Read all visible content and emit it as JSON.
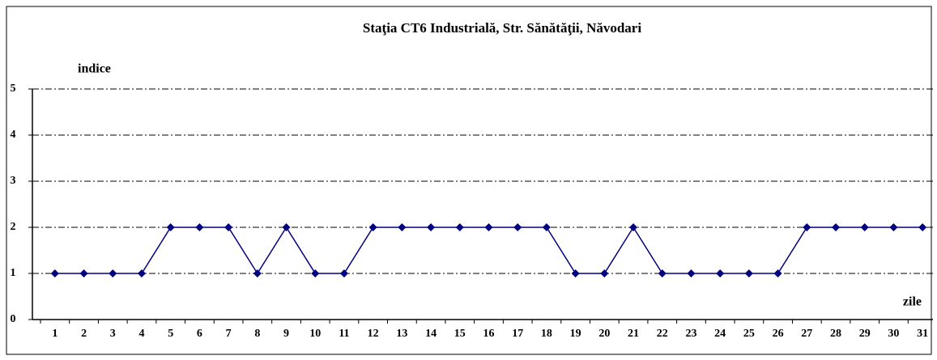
{
  "chart_data": {
    "type": "line",
    "title": "Staţia CT6 Industrială,  Str. Sănătăţii, Năvodari",
    "y_label": "indice",
    "x_label": "zile",
    "categories": [
      "1",
      "2",
      "3",
      "4",
      "5",
      "6",
      "7",
      "8",
      "9",
      "10",
      "11",
      "12",
      "13",
      "14",
      "15",
      "16",
      "17",
      "18",
      "19",
      "20",
      "21",
      "22",
      "23",
      "24",
      "25",
      "26",
      "27",
      "28",
      "29",
      "30",
      "31"
    ],
    "series": [
      {
        "name": "indice",
        "color": "#000080",
        "values": [
          1,
          1,
          1,
          1,
          2,
          2,
          2,
          1,
          2,
          1,
          1,
          2,
          2,
          2,
          2,
          2,
          2,
          2,
          1,
          1,
          2,
          1,
          1,
          1,
          1,
          1,
          2,
          2,
          2,
          2,
          2
        ]
      }
    ],
    "ylim": [
      0,
      5
    ],
    "yticks": [
      0,
      1,
      2,
      3,
      4,
      5
    ],
    "grid": true
  }
}
